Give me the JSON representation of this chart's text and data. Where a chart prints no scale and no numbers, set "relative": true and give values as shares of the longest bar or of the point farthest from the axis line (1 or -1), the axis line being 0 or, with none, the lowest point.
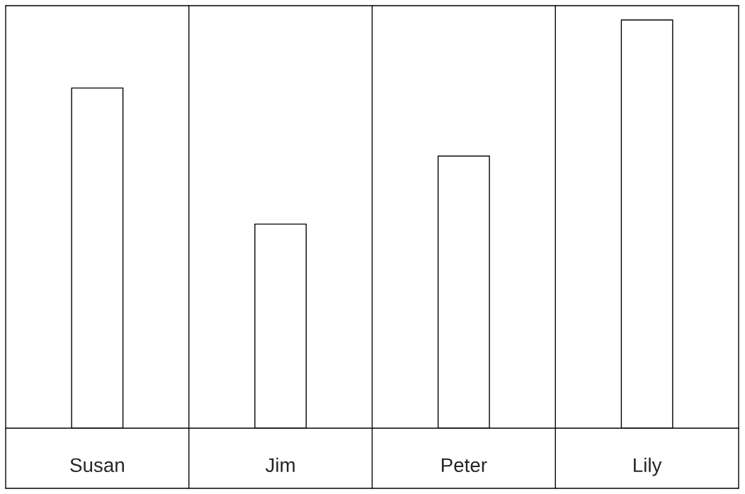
{
  "chart_data": {
    "type": "bar",
    "relative": true,
    "categories": [
      "Susan",
      "Jim",
      "Peter",
      "Lily"
    ],
    "values": [
      0.8333,
      0.5,
      0.6667,
      1
    ],
    "color": "#ffffff"
  }
}
